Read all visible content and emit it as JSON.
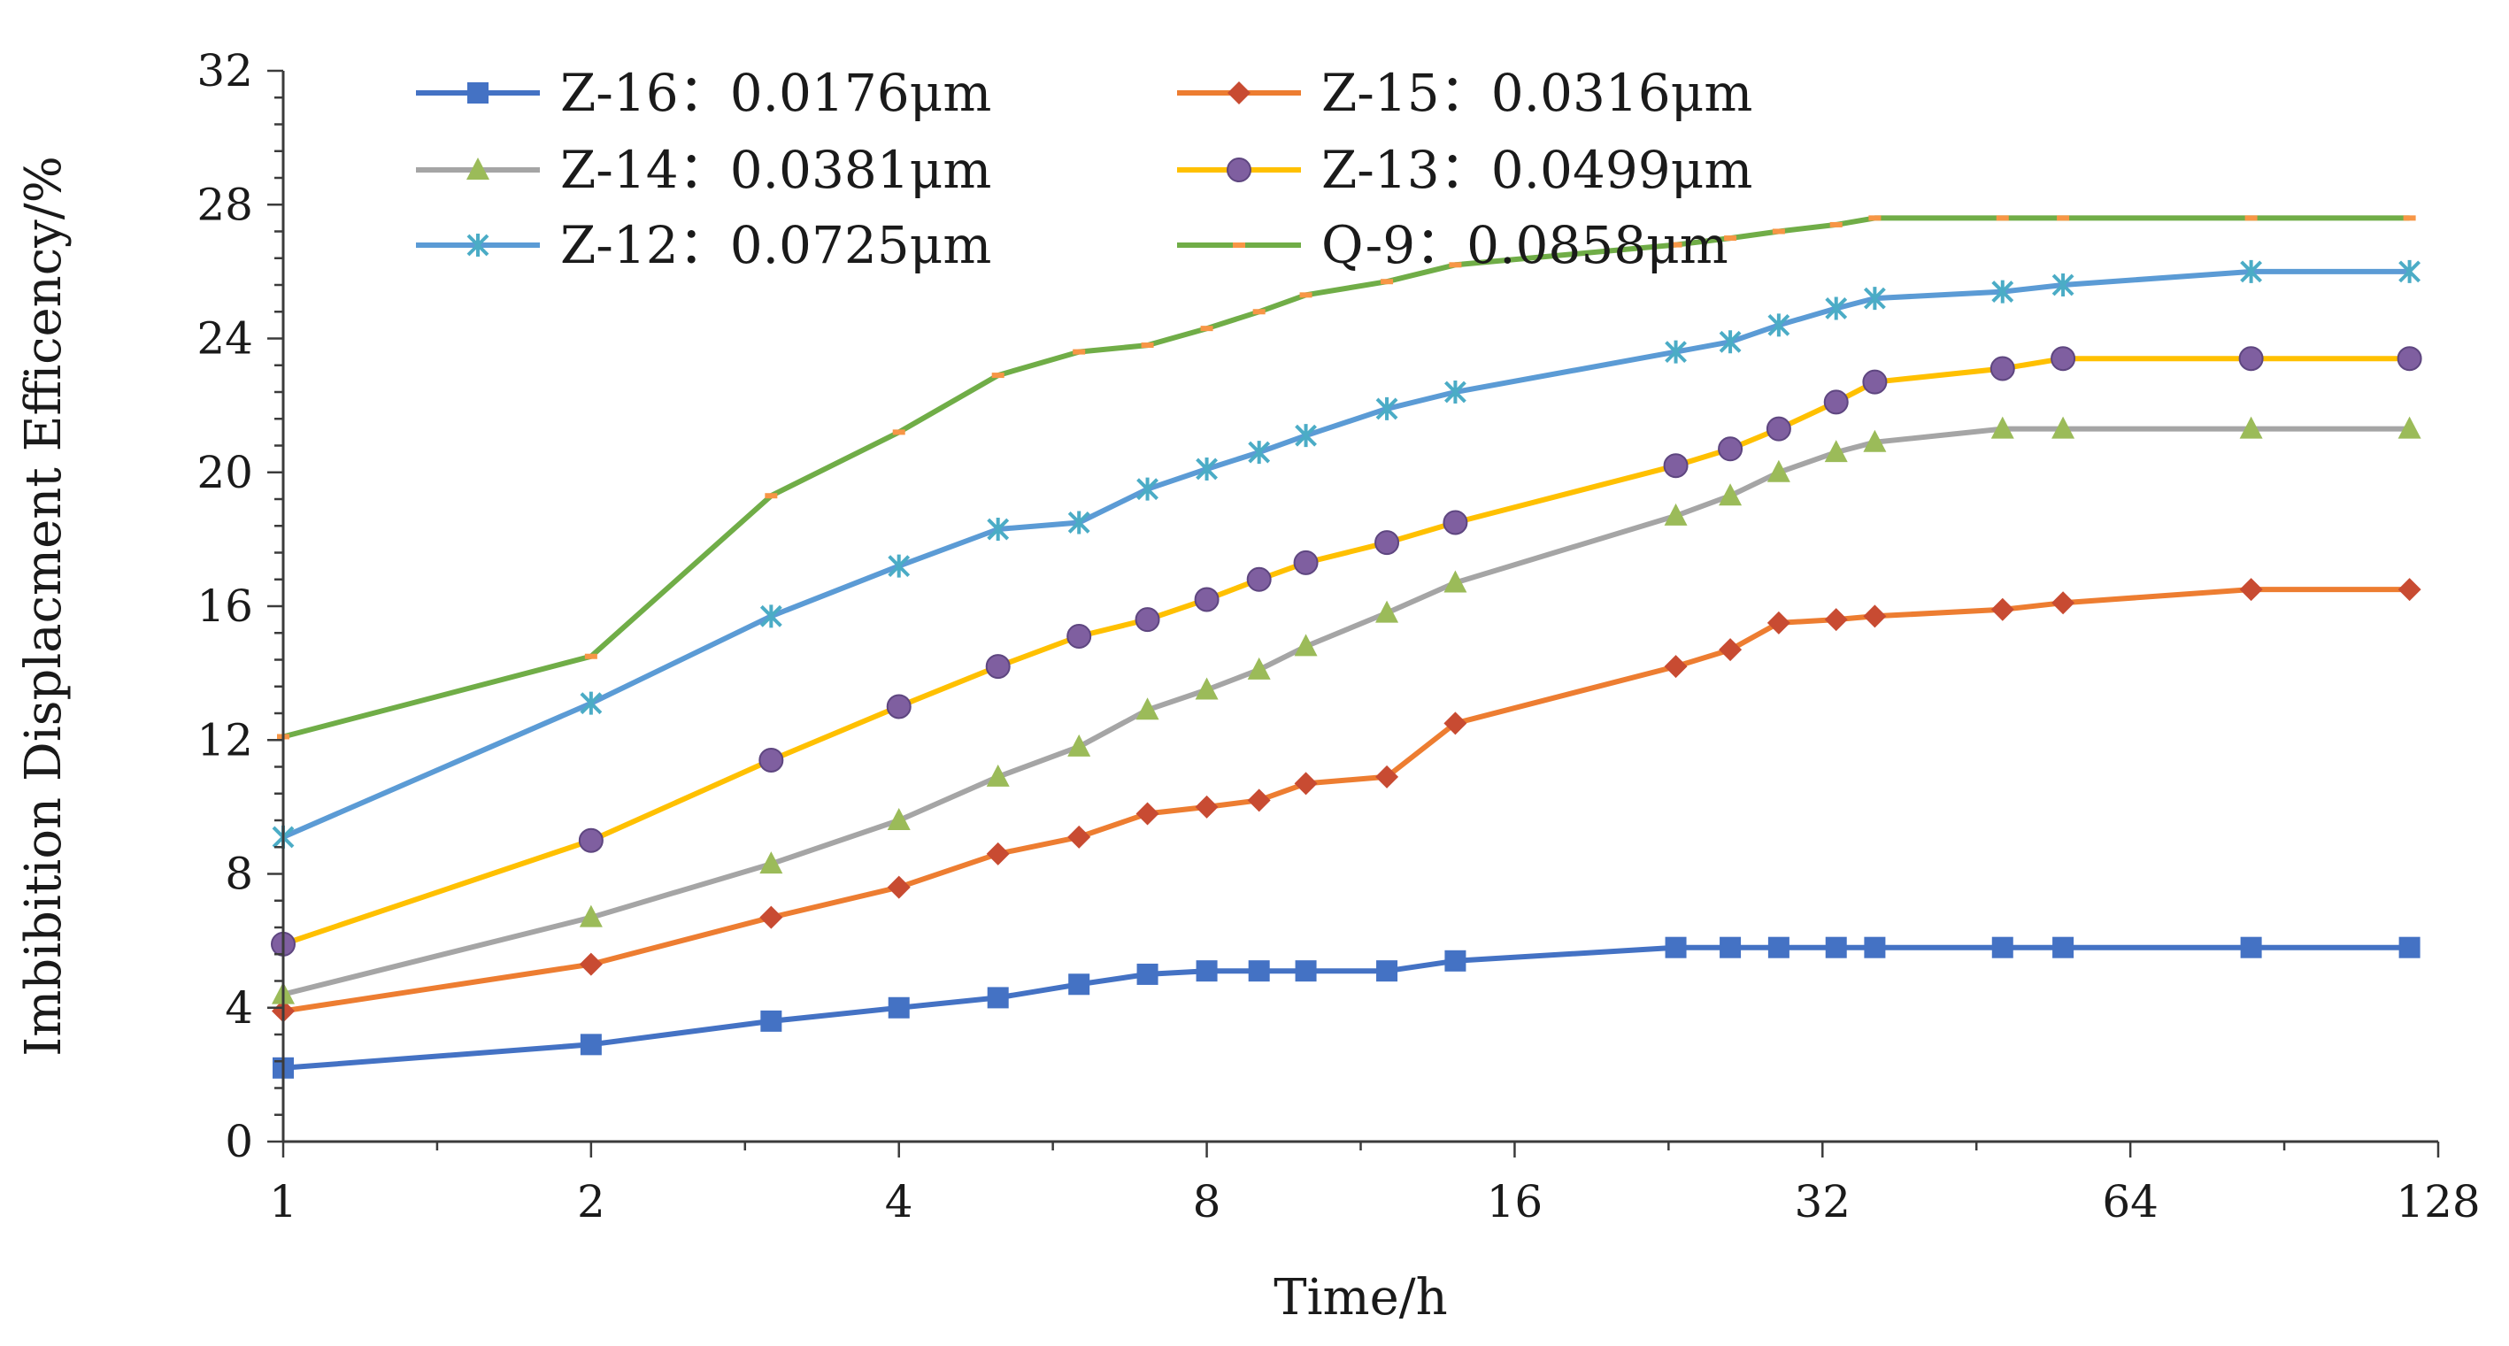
{
  "chart_data": {
    "type": "line",
    "xscale": "log2",
    "xlim": [
      1,
      128
    ],
    "ylim": [
      0,
      32
    ],
    "xticks": [
      "1",
      "2",
      "4",
      "8",
      "16",
      "32",
      "64",
      "128"
    ],
    "yticks": [
      "0",
      "4",
      "8",
      "12",
      "16",
      "20",
      "24",
      "28",
      "32"
    ],
    "xlabel": "Time/h",
    "ylabel": "Imbibition Displacment Efficency/%",
    "grid": false,
    "legend_position": "top-left",
    "series": [
      {
        "name": "Z-16：0.0176μm",
        "color": "#4472C4",
        "marker": "square",
        "x": [
          1,
          2,
          3,
          4,
          5,
          6,
          7,
          8,
          9,
          10,
          12,
          14,
          23,
          26,
          29,
          33,
          36,
          48,
          55,
          84,
          120
        ],
        "y": [
          2.2,
          2.9,
          3.6,
          4.0,
          4.3,
          4.7,
          5.0,
          5.1,
          5.1,
          5.1,
          5.1,
          5.4,
          5.8,
          5.8,
          5.8,
          5.8,
          5.8,
          5.8,
          5.8,
          5.8,
          5.8
        ]
      },
      {
        "name": "Z-15：0.0316μm",
        "color": "#ED7D31",
        "marker": "diamond",
        "x": [
          1,
          2,
          3,
          4,
          5,
          6,
          7,
          8,
          9,
          10,
          12,
          14,
          23,
          26,
          29,
          33,
          36,
          48,
          55,
          84,
          120
        ],
        "y": [
          3.9,
          5.3,
          6.7,
          7.6,
          8.6,
          9.1,
          9.8,
          10.0,
          10.2,
          10.7,
          10.9,
          12.5,
          14.2,
          14.7,
          15.5,
          15.6,
          15.7,
          15.9,
          16.1,
          16.5,
          16.5
        ]
      },
      {
        "name": "Z-14：0.0381μm",
        "color": "#A5A5A5",
        "marker": "triangle",
        "x": [
          1,
          2,
          3,
          4,
          5,
          6,
          7,
          8,
          9,
          10,
          12,
          14,
          23,
          26,
          29,
          33,
          36,
          48,
          55,
          84,
          120
        ],
        "y": [
          4.4,
          6.7,
          8.3,
          9.6,
          10.9,
          11.8,
          12.9,
          13.5,
          14.1,
          14.8,
          15.8,
          16.7,
          18.7,
          19.3,
          20.0,
          20.6,
          20.9,
          21.3,
          21.3,
          21.3,
          21.3
        ]
      },
      {
        "name": "Z-13：0.0499μm",
        "color": "#FFC000",
        "marker": "circle",
        "x": [
          1,
          2,
          3,
          4,
          5,
          6,
          7,
          8,
          9,
          10,
          12,
          14,
          23,
          26,
          29,
          33,
          36,
          48,
          55,
          84,
          120
        ],
        "y": [
          5.9,
          9.0,
          11.4,
          13.0,
          14.2,
          15.1,
          15.6,
          16.2,
          16.8,
          17.3,
          17.9,
          18.5,
          20.2,
          20.7,
          21.3,
          22.1,
          22.7,
          23.1,
          23.4,
          23.4,
          23.4
        ]
      },
      {
        "name": "Z-12：0.0725μm",
        "color": "#5B9BD5",
        "marker": "star",
        "x": [
          1,
          2,
          3,
          4,
          5,
          6,
          7,
          8,
          9,
          10,
          12,
          14,
          23,
          26,
          29,
          33,
          36,
          48,
          55,
          84,
          120
        ],
        "y": [
          9.1,
          13.1,
          15.7,
          17.2,
          18.3,
          18.5,
          19.5,
          20.1,
          20.6,
          21.1,
          21.9,
          22.4,
          23.6,
          23.9,
          24.4,
          24.9,
          25.2,
          25.4,
          25.6,
          26.0,
          26.0
        ]
      },
      {
        "name": "Q-9：0.0858μm",
        "color": "#70AD47",
        "marker": "dash",
        "x": [
          1,
          2,
          3,
          4,
          5,
          6,
          7,
          8,
          9,
          10,
          12,
          14,
          23,
          26,
          29,
          33,
          36,
          48,
          55,
          84,
          120
        ],
        "y": [
          12.1,
          14.5,
          19.3,
          21.2,
          22.9,
          23.6,
          23.8,
          24.3,
          24.8,
          25.3,
          25.7,
          26.2,
          26.8,
          27.0,
          27.2,
          27.4,
          27.6,
          27.6,
          27.6,
          27.6,
          27.6
        ]
      }
    ]
  }
}
